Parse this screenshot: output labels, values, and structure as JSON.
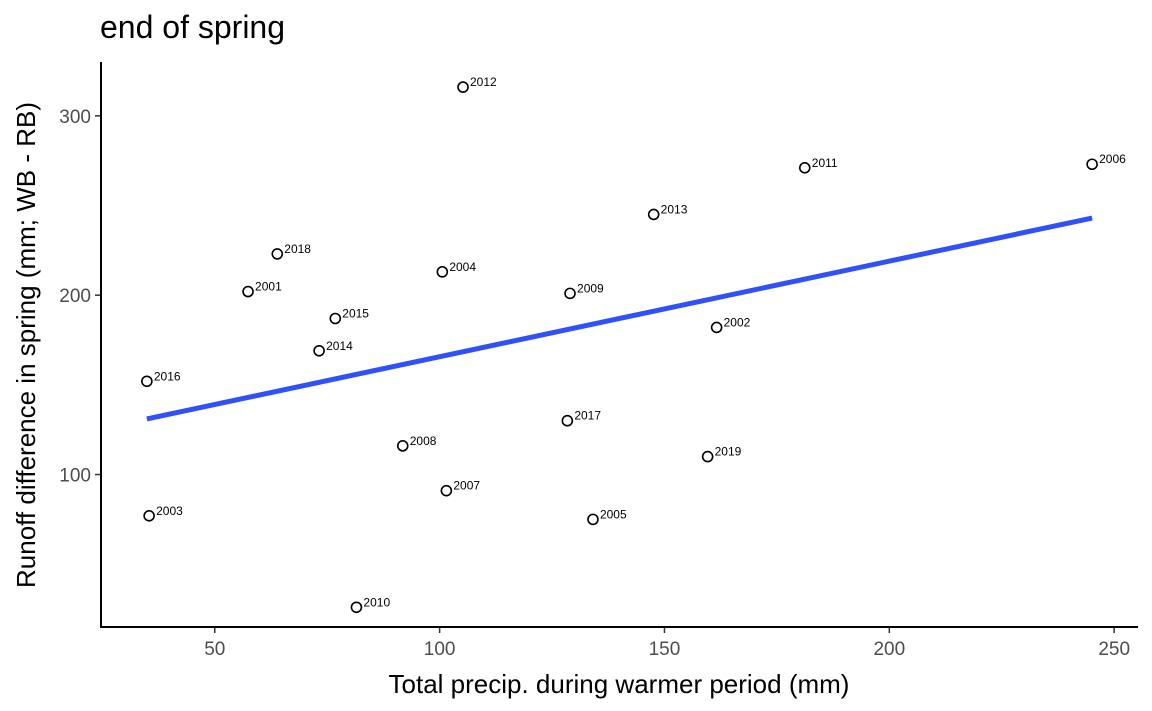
{
  "chart_data": {
    "type": "scatter",
    "title": "end of spring",
    "xlabel": "Total precip. during warmer period (mm)",
    "ylabel": "Runoff difference in spring (mm; WB - RB)",
    "xlim": [
      24.7,
      255.3
    ],
    "ylim": [
      15,
      330
    ],
    "xticks": [
      50,
      100,
      150,
      200,
      250
    ],
    "yticks": [
      100,
      200,
      300
    ],
    "grid": false,
    "points": [
      {
        "label": "2012",
        "x": 105.2,
        "y": 316
      },
      {
        "label": "2011",
        "x": 181.2,
        "y": 271
      },
      {
        "label": "2006",
        "x": 245.1,
        "y": 273
      },
      {
        "label": "2013",
        "x": 147.6,
        "y": 245
      },
      {
        "label": "2018",
        "x": 63.9,
        "y": 223
      },
      {
        "label": "2004",
        "x": 100.6,
        "y": 213
      },
      {
        "label": "2001",
        "x": 57.4,
        "y": 202
      },
      {
        "label": "2009",
        "x": 129.0,
        "y": 201
      },
      {
        "label": "2015",
        "x": 76.8,
        "y": 187
      },
      {
        "label": "2002",
        "x": 161.6,
        "y": 182
      },
      {
        "label": "2014",
        "x": 73.2,
        "y": 169
      },
      {
        "label": "2016",
        "x": 34.9,
        "y": 152
      },
      {
        "label": "2017",
        "x": 128.4,
        "y": 130
      },
      {
        "label": "2008",
        "x": 91.8,
        "y": 116
      },
      {
        "label": "2019",
        "x": 159.6,
        "y": 110
      },
      {
        "label": "2007",
        "x": 101.5,
        "y": 91
      },
      {
        "label": "2003",
        "x": 35.4,
        "y": 77
      },
      {
        "label": "2005",
        "x": 134.1,
        "y": 75
      },
      {
        "label": "2010",
        "x": 81.5,
        "y": 26
      }
    ],
    "trend_line": {
      "method": "linear fit",
      "color": "#3050f8",
      "x": [
        34.9,
        245.1
      ],
      "y": [
        131,
        243
      ]
    }
  }
}
